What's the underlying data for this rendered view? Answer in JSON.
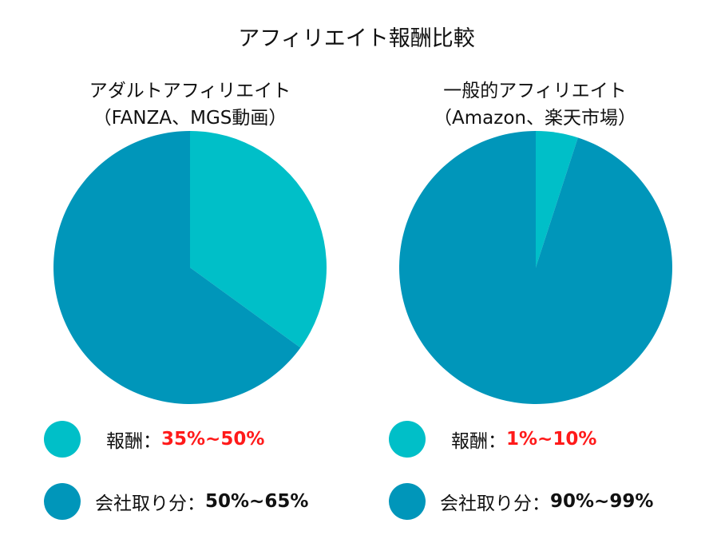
{
  "title": "アフィリエイト報酬比較",
  "colors": {
    "reward": "#00BFC8",
    "company": "#0096BA",
    "highlight": "#FF1A1A"
  },
  "chart_data": [
    {
      "type": "pie",
      "title_line1": "アダルトアフィリエイト",
      "title_line2": "（FANZA、MGS動画）",
      "slices": [
        {
          "label": "報酬",
          "value": 35,
          "range": "35%~50%"
        },
        {
          "label": "会社取り分",
          "value": 65,
          "range": "50%~65%"
        }
      ]
    },
    {
      "type": "pie",
      "title_line1": "一般的アフィリエイト",
      "title_line2": "（Amazon、楽天市場）",
      "slices": [
        {
          "label": "報酬",
          "value": 5,
          "range": "1%~10%"
        },
        {
          "label": "会社取り分",
          "value": 95,
          "range": "90%~99%"
        }
      ]
    }
  ],
  "legend": {
    "left": {
      "reward_label": "報酬：",
      "reward_value": "35%~50%",
      "company_label": "会社取り分：",
      "company_value": "50%~65%"
    },
    "right": {
      "reward_label": "報酬：",
      "reward_value": "1%~10%",
      "company_label": "会社取り分：",
      "company_value": "90%~99%"
    }
  }
}
